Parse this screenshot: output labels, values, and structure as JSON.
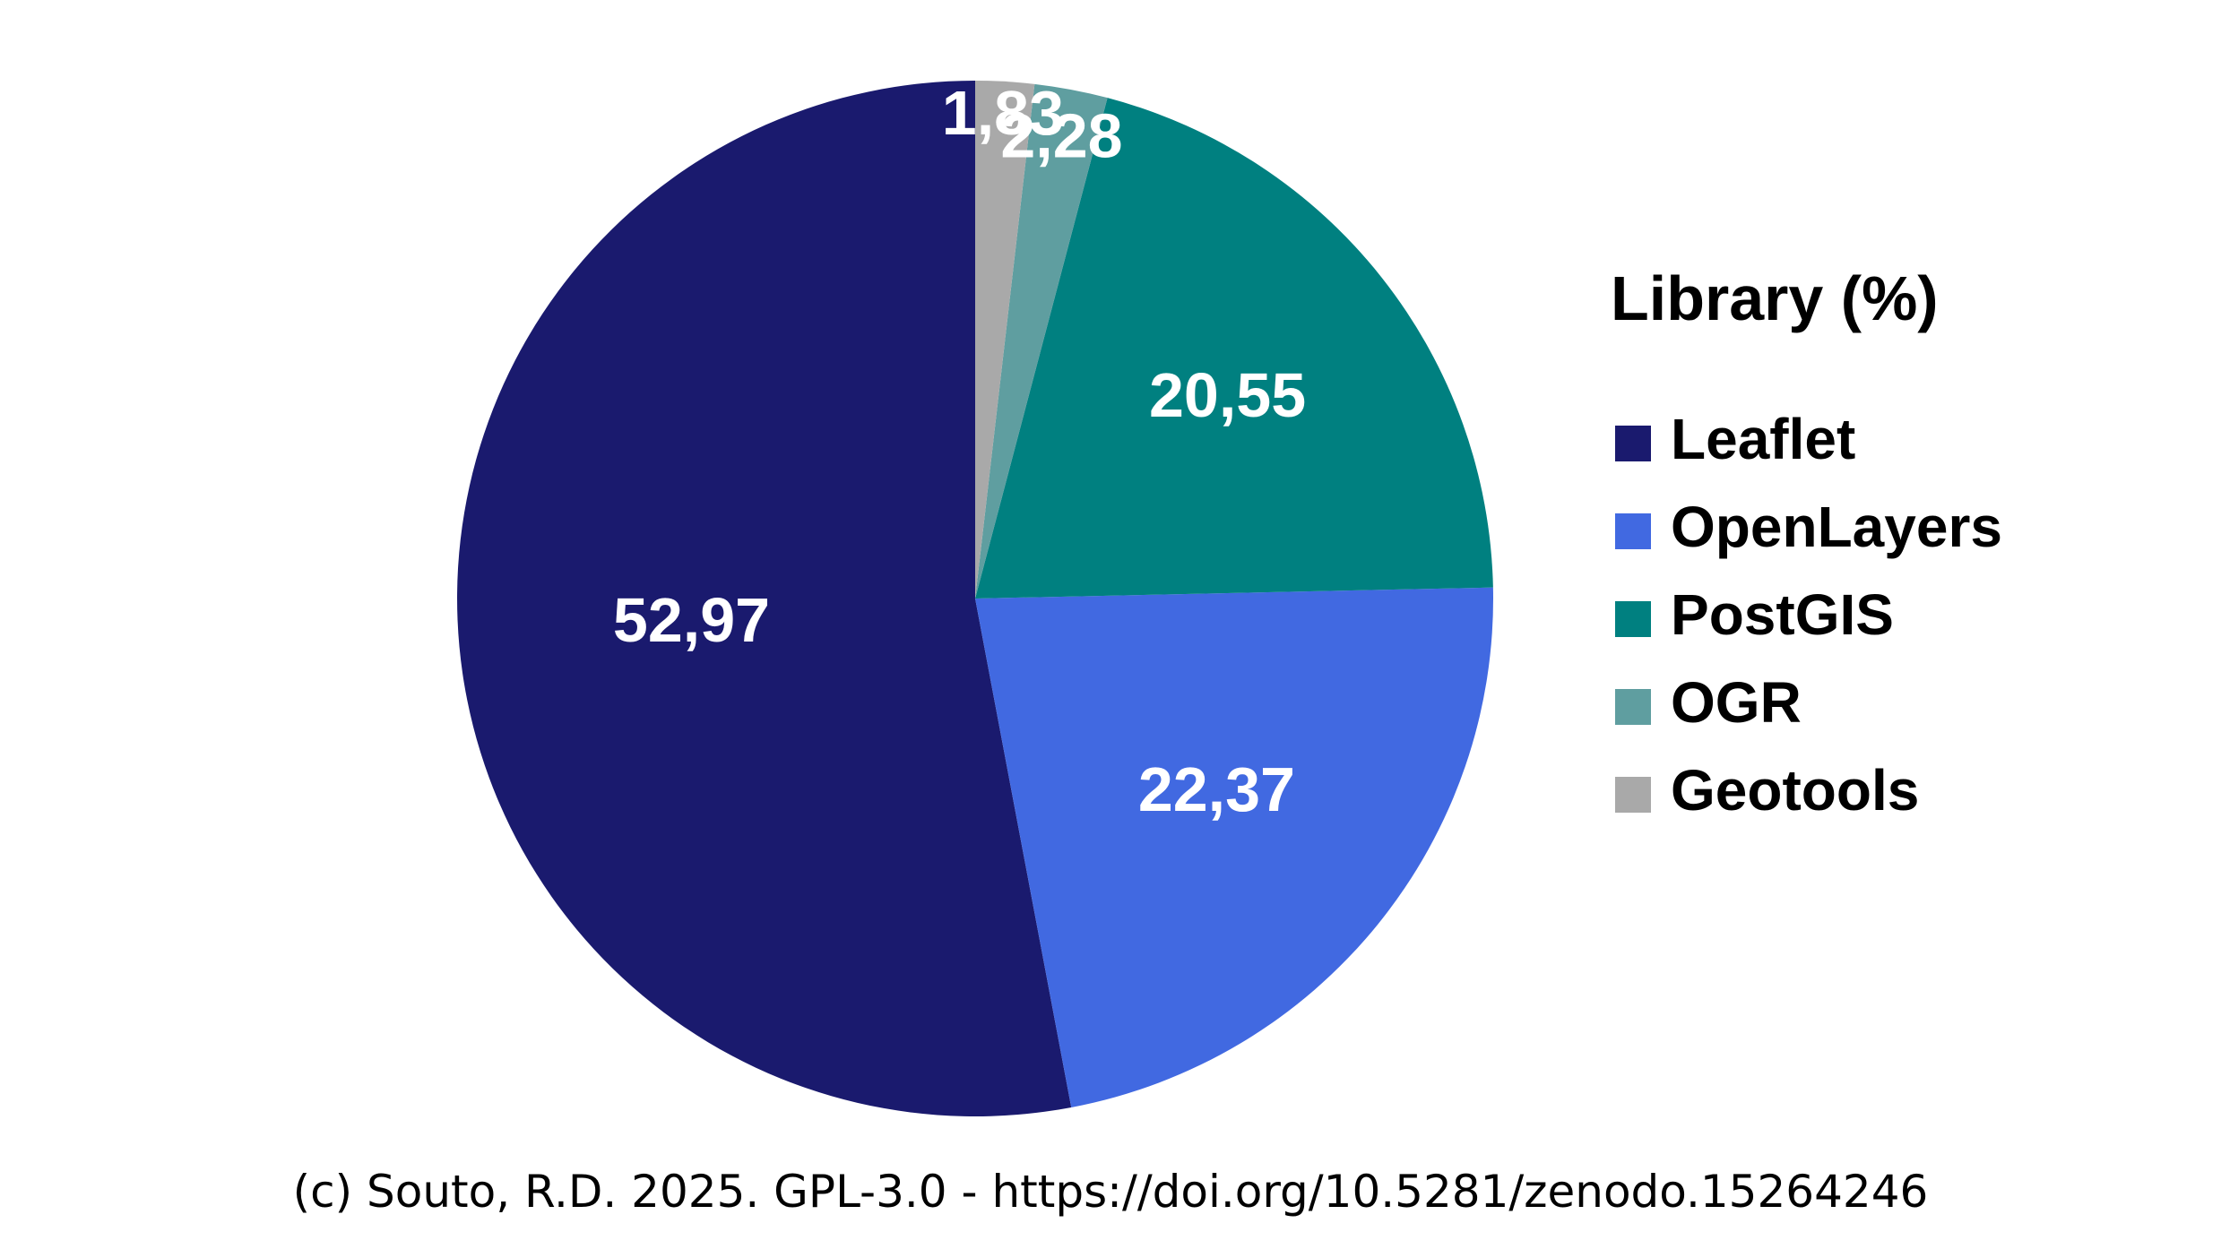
{
  "chart_data": {
    "type": "pie",
    "categories": [
      "Leaflet",
      "OpenLayers",
      "PostGIS",
      "OGR",
      "Geotools"
    ],
    "values": [
      52.97,
      22.37,
      20.55,
      2.28,
      1.83
    ],
    "value_labels": [
      "52,97",
      "22,37",
      "20,55",
      "2,28",
      "1,83"
    ],
    "colors": [
      "#1a1a6e",
      "#4169e1",
      "#008080",
      "#5f9ea0",
      "#a9a9a9"
    ],
    "direction": "counterclockwise",
    "start": "top",
    "legend_title": "Library (%)",
    "legend_position": "right"
  },
  "credit": "(c) Souto, R.D. 2025. GPL-3.0 - https://doi.org/10.5281/zenodo.15264246"
}
